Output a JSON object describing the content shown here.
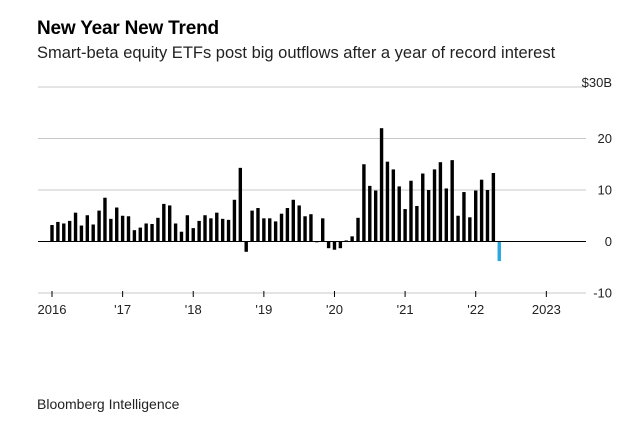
{
  "header": {
    "title": "New Year New Trend",
    "subtitle": "Smart-beta equity ETFs post big outflows after a year of record interest"
  },
  "footer": {
    "source": "Bloomberg Intelligence"
  },
  "colors": {
    "bar": "#000000",
    "highlight": "#29a8e0",
    "grid": "#c8c8c8",
    "zero": "#000000"
  },
  "chart_data": {
    "type": "bar",
    "title": "New Year New Trend",
    "subtitle": "Smart-beta equity ETFs post big outflows after a year of record interest",
    "ylabel": "",
    "y_unit": "$30B",
    "ylim": [
      -10,
      30
    ],
    "yticks": [
      30,
      20,
      10,
      0,
      -10
    ],
    "ytick_labels": [
      "$30B",
      "20",
      "10",
      "0",
      "-10"
    ],
    "grid": "horizontal",
    "x_ticks": [
      {
        "index": 0,
        "label": "2016"
      },
      {
        "index": 12,
        "label": "'17"
      },
      {
        "index": 24,
        "label": "'18"
      },
      {
        "index": 36,
        "label": "'19"
      },
      {
        "index": 48,
        "label": "'20"
      },
      {
        "index": 60,
        "label": "'21"
      },
      {
        "index": 72,
        "label": "'22"
      },
      {
        "index": 84,
        "label": "2023"
      }
    ],
    "start_month": "2016-01",
    "values": [
      3.2,
      3.8,
      3.5,
      4.0,
      5.6,
      3.1,
      5.1,
      3.3,
      6.0,
      8.5,
      4.4,
      6.6,
      5.0,
      4.9,
      2.2,
      2.7,
      3.5,
      3.4,
      4.6,
      7.3,
      7.0,
      3.5,
      1.9,
      5.1,
      2.6,
      4.0,
      5.1,
      4.5,
      5.6,
      4.4,
      4.2,
      8.1,
      14.3,
      -2.0,
      6.0,
      6.5,
      4.5,
      4.5,
      3.9,
      5.4,
      6.5,
      8.1,
      7.0,
      4.9,
      5.3,
      -0.1,
      4.5,
      -1.3,
      -1.6,
      -1.3,
      0.2,
      1.0,
      4.6,
      15.0,
      10.8,
      9.9,
      22.0,
      15.5,
      14.0,
      10.7,
      6.3,
      11.8,
      6.9,
      13.2,
      10.0,
      14.0,
      15.4,
      10.3,
      15.8,
      5.0,
      9.6,
      4.7,
      9.9,
      12.0,
      10.0,
      13.3,
      -3.8
    ],
    "highlight_index": 76
  }
}
